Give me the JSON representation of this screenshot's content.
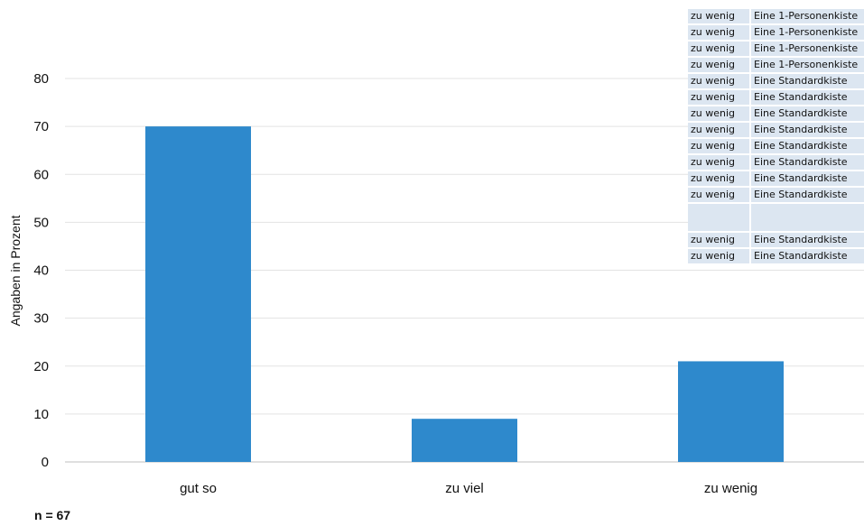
{
  "chart_data": {
    "type": "bar",
    "categories": [
      "gut so",
      "zu viel",
      "zu wenig"
    ],
    "values": [
      70,
      9,
      21
    ],
    "ylabel": "Angaben in Prozent",
    "xlabel": "",
    "ylim": [
      0,
      80
    ],
    "yticks": [
      0,
      10,
      20,
      30,
      40,
      50,
      60,
      70,
      80
    ],
    "bar_color": "#2e89cc",
    "grid": true,
    "note": "n = 67"
  },
  "overlay_table": {
    "rows": [
      [
        "zu wenig",
        "Eine 1-Personenkiste"
      ],
      [
        "zu wenig",
        "Eine 1-Personenkiste"
      ],
      [
        "zu wenig",
        "Eine 1-Personenkiste"
      ],
      [
        "zu wenig",
        "Eine 1-Personenkiste"
      ],
      [
        "zu wenig",
        "Eine Standardkiste"
      ],
      [
        "zu wenig",
        "Eine Standardkiste"
      ],
      [
        "zu wenig",
        "Eine Standardkiste"
      ],
      [
        "zu wenig",
        "Eine Standardkiste"
      ],
      [
        "zu wenig",
        "Eine Standardkiste"
      ],
      [
        "zu wenig",
        "Eine Standardkiste"
      ],
      [
        "zu wenig",
        "Eine Standardkiste"
      ],
      [
        "zu wenig",
        "Eine Standardkiste"
      ],
      [
        "",
        ""
      ],
      [
        "zu wenig",
        "Eine Standardkiste"
      ],
      [
        "zu wenig",
        "Eine Standardkiste"
      ]
    ]
  }
}
